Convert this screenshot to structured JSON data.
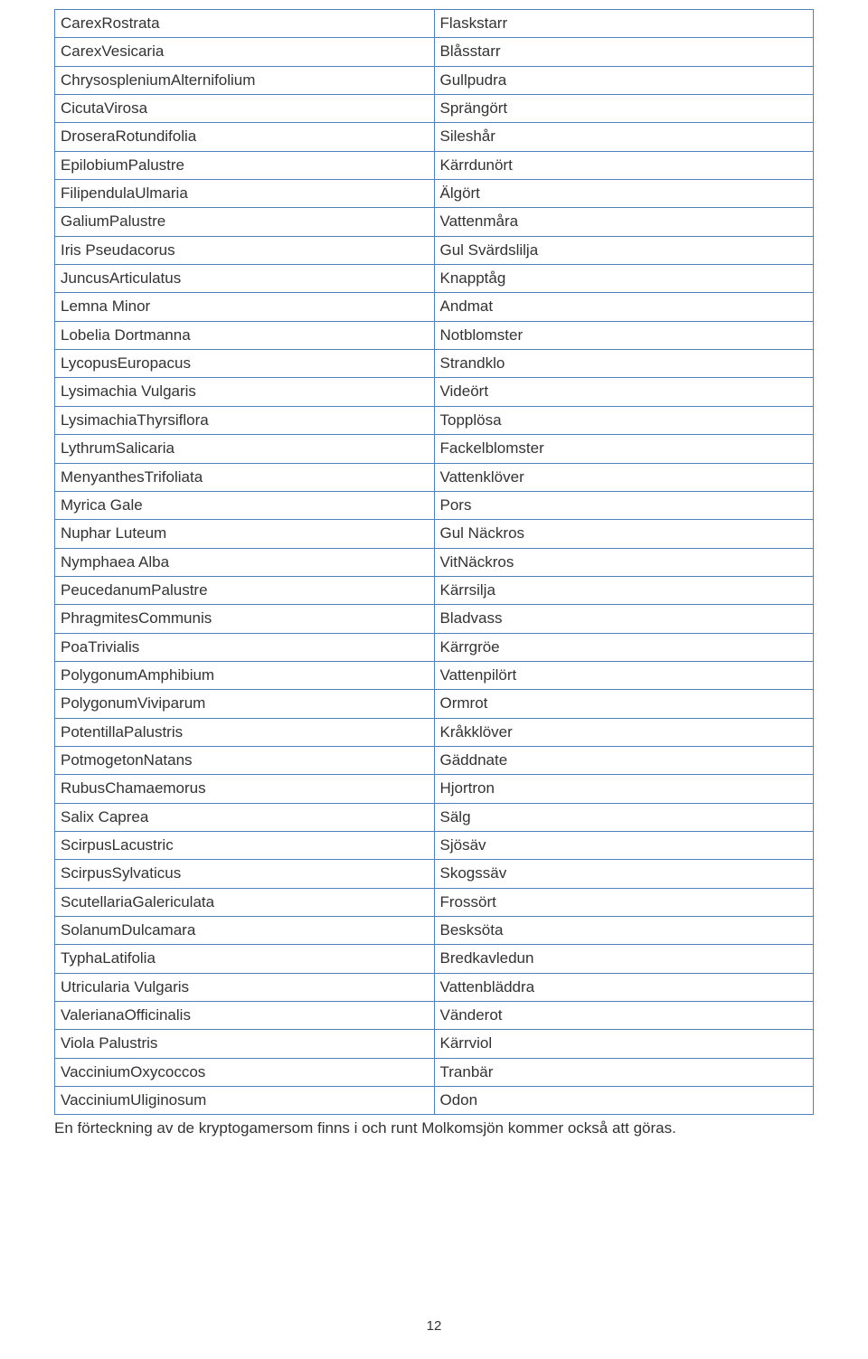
{
  "style": {
    "text_color": "#333333",
    "border_color": "#4f81bd",
    "background": "#ffffff",
    "font_size_pt": 12,
    "footnote_font_size_pt": 12
  },
  "table": {
    "rows": [
      {
        "latin": "CarexRostrata",
        "swedish": "Flaskstarr"
      },
      {
        "latin": "CarexVesicaria",
        "swedish": "Blåsstarr"
      },
      {
        "latin": "ChrysospleniumAlternifolium",
        "swedish": "Gullpudra"
      },
      {
        "latin": "CicutaVirosa",
        "swedish": "Sprängört"
      },
      {
        "latin": "DroseraRotundifolia",
        "swedish": "Sileshår"
      },
      {
        "latin": "EpilobiumPalustre",
        "swedish": "Kärrdunört"
      },
      {
        "latin": "FilipendulaUlmaria",
        "swedish": "Älgört"
      },
      {
        "latin": "GaliumPalustre",
        "swedish": "Vattenmåra"
      },
      {
        "latin": "Iris Pseudacorus",
        "swedish": "Gul Svärdslilja"
      },
      {
        "latin": "JuncusArticulatus",
        "swedish": "Knapptåg"
      },
      {
        "latin": "Lemna Minor",
        "swedish": "Andmat"
      },
      {
        "latin": "Lobelia Dortmanna",
        "swedish": "Notblomster"
      },
      {
        "latin": "LycopusEuropacus",
        "swedish": "Strandklo"
      },
      {
        "latin": "Lysimachia Vulgaris",
        "swedish": "Videört"
      },
      {
        "latin": "LysimachiaThyrsiflora",
        "swedish": "Topplösa"
      },
      {
        "latin": "LythrumSalicaria",
        "swedish": "Fackelblomster"
      },
      {
        "latin": "MenyanthesTrifoliata",
        "swedish": "Vattenklöver"
      },
      {
        "latin": "Myrica Gale",
        "swedish": "Pors"
      },
      {
        "latin": "Nuphar Luteum",
        "swedish": "Gul Näckros"
      },
      {
        "latin": "Nymphaea Alba",
        "swedish": "VitNäckros"
      },
      {
        "latin": "PeucedanumPalustre",
        "swedish": "Kärrsilja"
      },
      {
        "latin": "PhragmitesCommunis",
        "swedish": "Bladvass"
      },
      {
        "latin": "PoaTrivialis",
        "swedish": "Kärrgröe"
      },
      {
        "latin": "PolygonumAmphibium",
        "swedish": "Vattenpilört"
      },
      {
        "latin": "PolygonumViviparum",
        "swedish": "Ormrot"
      },
      {
        "latin": "PotentillaPalustris",
        "swedish": "Kråkklöver"
      },
      {
        "latin": "PotmogetonNatans",
        "swedish": "Gäddnate"
      },
      {
        "latin": "RubusChamaemorus",
        "swedish": "Hjortron"
      },
      {
        "latin": "Salix Caprea",
        "swedish": "Sälg"
      },
      {
        "latin": "ScirpusLacustric",
        "swedish": "Sjösäv"
      },
      {
        "latin": "ScirpusSylvaticus",
        "swedish": "Skogssäv"
      },
      {
        "latin": "ScutellariaGalericulata",
        "swedish": "Frossört"
      },
      {
        "latin": "SolanumDulcamara",
        "swedish": "Besksöta"
      },
      {
        "latin": "TyphaLatifolia",
        "swedish": "Bredkavledun"
      },
      {
        "latin": "Utricularia Vulgaris",
        "swedish": "Vattenbläddra"
      },
      {
        "latin": "ValerianaOfficinalis",
        "swedish": "Vänderot"
      },
      {
        "latin": "Viola Palustris",
        "swedish": "Kärrviol"
      },
      {
        "latin": "VacciniumOxycoccos",
        "swedish": "Tranbär"
      },
      {
        "latin": "VacciniumUliginosum",
        "swedish": "Odon"
      }
    ]
  },
  "footnote": "En förteckning av de kryptogamersom finns i och runt Molkomsjön kommer också att göras.",
  "page_number": "12"
}
